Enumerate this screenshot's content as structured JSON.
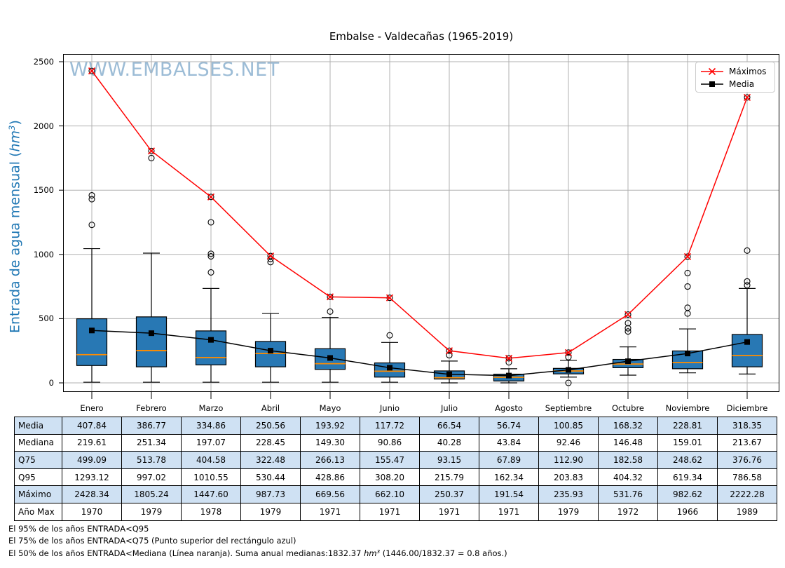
{
  "title": "Embalse - Valdecañas (1965-2019)",
  "watermark": "WWW.EMBALSES.NET",
  "ylabel_parts": {
    "pre": "Entrada de agua mensual (",
    "unit": "hm",
    "sup": "3",
    "post": ")"
  },
  "legend": {
    "maximos": "Máximos",
    "media": "Media"
  },
  "chart_data": {
    "type": "boxplot",
    "title": "Embalse - Valdecañas (1965-2019)",
    "ylabel": "Entrada de agua mensual (hm³)",
    "categories": [
      "Enero",
      "Febrero",
      "Marzo",
      "Abril",
      "Mayo",
      "Junio",
      "Julio",
      "Agosto",
      "Septiembre",
      "Octubre",
      "Noviembre",
      "Diciembre"
    ],
    "ylim": [
      0,
      2500
    ],
    "yticks": [
      0,
      500,
      1000,
      1500,
      2000,
      2500
    ],
    "grid": true,
    "legend_position": "upper right",
    "series": [
      {
        "name": "Máximos",
        "type": "line",
        "color": "#ff0000",
        "marker": "x",
        "values": [
          2428.34,
          1805.24,
          1447.6,
          987.73,
          669.56,
          662.1,
          250.37,
          191.54,
          235.93,
          531.76,
          982.62,
          2222.28
        ]
      },
      {
        "name": "Media",
        "type": "line",
        "color": "#000000",
        "marker": "square",
        "values": [
          407.84,
          386.77,
          334.86,
          250.56,
          193.92,
          117.72,
          66.54,
          56.74,
          100.85,
          168.32,
          228.81,
          318.35
        ]
      }
    ],
    "boxplots": [
      {
        "category": "Enero",
        "q1": 135,
        "median": 219.61,
        "q3": 499.09,
        "whislo": 5,
        "whishi": 1045,
        "fliers": [
          1230,
          1430,
          1460,
          2428.34
        ]
      },
      {
        "category": "Febrero",
        "q1": 125,
        "median": 251.34,
        "q3": 513.78,
        "whislo": 5,
        "whishi": 1010,
        "fliers": [
          1750,
          1805.24
        ]
      },
      {
        "category": "Marzo",
        "q1": 140,
        "median": 197.07,
        "q3": 404.58,
        "whislo": 5,
        "whishi": 735,
        "fliers": [
          860,
          985,
          1005,
          1250,
          1447.6
        ]
      },
      {
        "category": "Abril",
        "q1": 125,
        "median": 228.45,
        "q3": 322.48,
        "whislo": 5,
        "whishi": 540,
        "fliers": [
          940,
          965,
          987.73
        ]
      },
      {
        "category": "Mayo",
        "q1": 105,
        "median": 149.3,
        "q3": 266.13,
        "whislo": 5,
        "whishi": 510,
        "fliers": [
          555,
          669.56
        ]
      },
      {
        "category": "Junio",
        "q1": 45,
        "median": 90.86,
        "q3": 155.47,
        "whislo": 5,
        "whishi": 315,
        "fliers": [
          370,
          662.1
        ]
      },
      {
        "category": "Julio",
        "q1": 30,
        "median": 40.28,
        "q3": 93.15,
        "whislo": 0,
        "whishi": 170,
        "fliers": [
          215,
          250.37
        ]
      },
      {
        "category": "Agosto",
        "q1": 15,
        "median": 43.84,
        "q3": 67.89,
        "whislo": 0,
        "whishi": 110,
        "fliers": [
          160,
          191.54
        ]
      },
      {
        "category": "Septiembre",
        "q1": 70,
        "median": 92.46,
        "q3": 112.9,
        "whislo": 45,
        "whishi": 175,
        "fliers": [
          0,
          200,
          235.93
        ]
      },
      {
        "category": "Octubre",
        "q1": 118,
        "median": 146.48,
        "q3": 182.58,
        "whislo": 60,
        "whishi": 280,
        "fliers": [
          400,
          425,
          465,
          531.76
        ]
      },
      {
        "category": "Noviembre",
        "q1": 110,
        "median": 159.01,
        "q3": 248.62,
        "whislo": 78,
        "whishi": 420,
        "fliers": [
          540,
          585,
          750,
          855,
          982.62
        ]
      },
      {
        "category": "Diciembre",
        "q1": 125,
        "median": 213.67,
        "q3": 376.76,
        "whislo": 69,
        "whishi": 735,
        "fliers": [
          760,
          790,
          1030,
          2222.28
        ]
      }
    ],
    "box_fill_color": "#2878b4",
    "median_line_color": "#ff8c00",
    "grid_color": "#b0b0b0"
  },
  "table": {
    "row_labels": [
      "Media",
      "Mediana",
      "Q75",
      "Q95",
      "Máximo",
      "Año Max"
    ],
    "rows": [
      [
        "407.84",
        "386.77",
        "334.86",
        "250.56",
        "193.92",
        "117.72",
        "66.54",
        "56.74",
        "100.85",
        "168.32",
        "228.81",
        "318.35"
      ],
      [
        "219.61",
        "251.34",
        "197.07",
        "228.45",
        "149.30",
        "90.86",
        "40.28",
        "43.84",
        "92.46",
        "146.48",
        "159.01",
        "213.67"
      ],
      [
        "499.09",
        "513.78",
        "404.58",
        "322.48",
        "266.13",
        "155.47",
        "93.15",
        "67.89",
        "112.90",
        "182.58",
        "248.62",
        "376.76"
      ],
      [
        "1293.12",
        "997.02",
        "1010.55",
        "530.44",
        "428.86",
        "308.20",
        "215.79",
        "162.34",
        "203.83",
        "404.32",
        "619.34",
        "786.58"
      ],
      [
        "2428.34",
        "1805.24",
        "1447.60",
        "987.73",
        "669.56",
        "662.10",
        "250.37",
        "191.54",
        "235.93",
        "531.76",
        "982.62",
        "2222.28"
      ],
      [
        "1970",
        "1979",
        "1978",
        "1979",
        "1971",
        "1971",
        "1971",
        "1971",
        "1979",
        "1972",
        "1966",
        "1989"
      ]
    ],
    "highlight_rows": [
      0,
      2,
      4
    ],
    "highlight_color": "#cfe1f3"
  },
  "footnotes": {
    "line1": "El 95% de los años ENTRADA<Q95",
    "line2": "El 75% de los años ENTRADA<Q75 (Punto superior del rectángulo azul)",
    "line3_pre": "El 50% de los años ENTRADA<Mediana (Línea naranja). Suma anual medianas:1832.37 ",
    "line3_unit": "hm",
    "line3_sup": "3",
    "line3_post": " (1446.00/1832.37 = 0.8 años.)"
  }
}
